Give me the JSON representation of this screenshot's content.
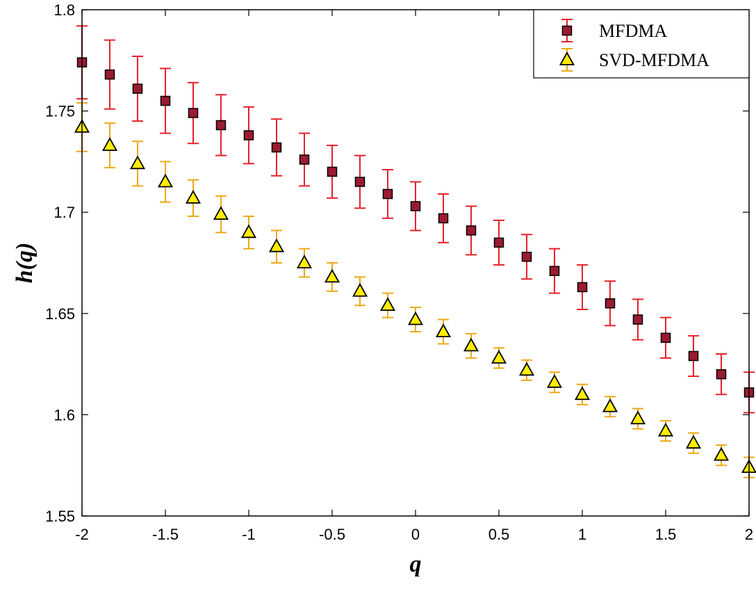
{
  "chart_data": {
    "type": "scatter",
    "title": "",
    "xlabel": "q",
    "ylabel": "h(q)",
    "xlim": [
      -2,
      2
    ],
    "ylim": [
      1.55,
      1.8
    ],
    "xticks": [
      -2,
      -1.5,
      -1,
      -0.5,
      0,
      0.5,
      1,
      1.5,
      2
    ],
    "xtick_labels": [
      "-2",
      "-1.5",
      "-1",
      "-0.5",
      "0",
      "0.5",
      "1",
      "1.5",
      "2"
    ],
    "yticks": [
      1.55,
      1.6,
      1.65,
      1.7,
      1.75,
      1.8
    ],
    "ytick_labels": [
      "1.55",
      "1.6",
      "1.65",
      "1.7",
      "1.75",
      "1.8"
    ],
    "grid": false,
    "legend_position": "top-right",
    "x": [
      -2,
      -1.8333,
      -1.6667,
      -1.5,
      -1.3333,
      -1.1667,
      -1,
      -0.8333,
      -0.6667,
      -0.5,
      -0.3333,
      -0.1667,
      0,
      0.1667,
      0.3333,
      0.5,
      0.6667,
      0.8333,
      1,
      1.1667,
      1.3333,
      1.5,
      1.6667,
      1.8333,
      2
    ],
    "series": [
      {
        "name": "MFDMA",
        "marker": "square",
        "marker_color": "#9b1b30",
        "errorbar_color": "#e8202a",
        "values": [
          1.774,
          1.768,
          1.761,
          1.755,
          1.749,
          1.743,
          1.738,
          1.732,
          1.726,
          1.72,
          1.715,
          1.709,
          1.703,
          1.697,
          1.691,
          1.685,
          1.678,
          1.671,
          1.663,
          1.655,
          1.647,
          1.638,
          1.629,
          1.62,
          1.611
        ],
        "errors": [
          0.018,
          0.017,
          0.016,
          0.016,
          0.015,
          0.015,
          0.014,
          0.014,
          0.013,
          0.013,
          0.013,
          0.012,
          0.012,
          0.012,
          0.012,
          0.011,
          0.011,
          0.011,
          0.011,
          0.011,
          0.01,
          0.01,
          0.01,
          0.01,
          0.01
        ]
      },
      {
        "name": "SVD-MFDMA",
        "marker": "triangle",
        "marker_color": "#ffee00",
        "errorbar_color": "#eda817",
        "values": [
          1.742,
          1.733,
          1.724,
          1.715,
          1.707,
          1.699,
          1.69,
          1.683,
          1.675,
          1.668,
          1.661,
          1.654,
          1.647,
          1.641,
          1.634,
          1.628,
          1.622,
          1.616,
          1.61,
          1.604,
          1.598,
          1.592,
          1.586,
          1.58,
          1.574
        ],
        "errors": [
          0.012,
          0.011,
          0.011,
          0.01,
          0.009,
          0.009,
          0.008,
          0.008,
          0.007,
          0.007,
          0.007,
          0.006,
          0.006,
          0.006,
          0.006,
          0.005,
          0.005,
          0.005,
          0.005,
          0.005,
          0.005,
          0.005,
          0.005,
          0.005,
          0.005
        ]
      }
    ]
  }
}
